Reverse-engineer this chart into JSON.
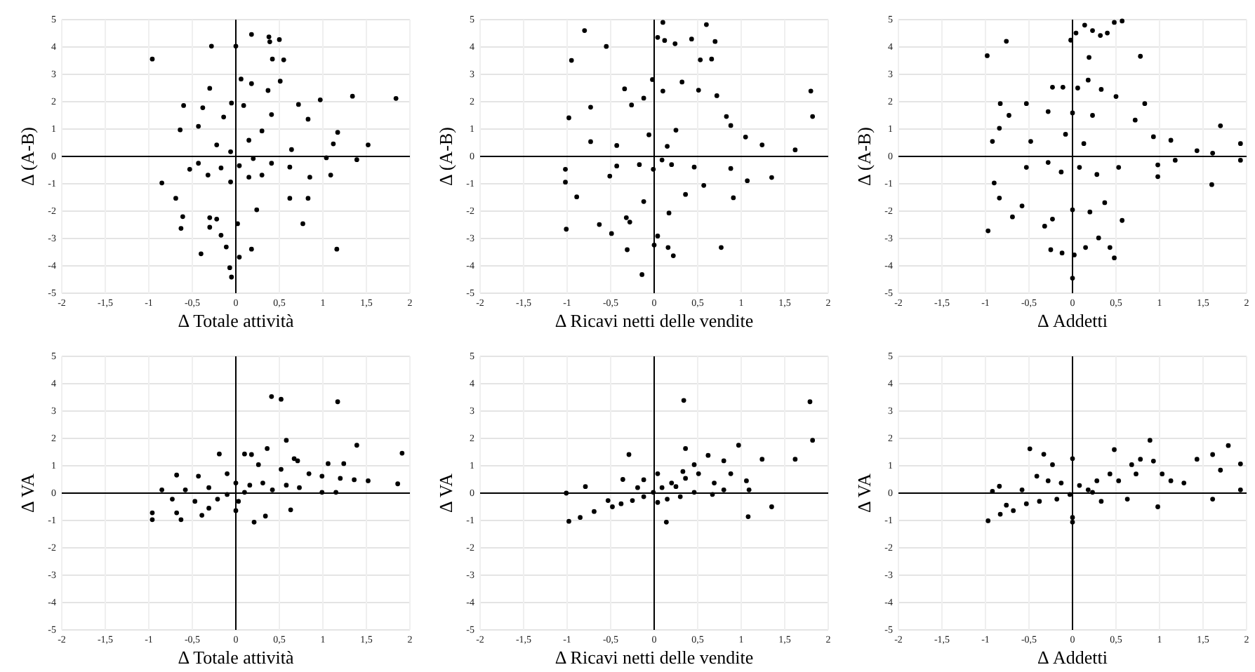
{
  "chart_data": [
    {
      "type": "scatter",
      "xlabel": "Δ Totale attività",
      "ylabel": "Δ (A-B)",
      "color": "#000000",
      "marker": "circle",
      "grid": true,
      "xlim": [
        -2,
        2
      ],
      "ylim": [
        -5,
        5
      ],
      "xticks": [
        -2,
        {
          "value": -1.5,
          "label": "-1,5"
        },
        -1,
        {
          "value": -0.5,
          "label": "-0,5"
        },
        0,
        {
          "value": 0.5,
          "label": "0,5"
        },
        1,
        {
          "value": 1.5,
          "label": "1,5"
        },
        2
      ],
      "yticks": [
        -5,
        -4,
        -3,
        -2,
        -1,
        0,
        1,
        2,
        3,
        4,
        5
      ],
      "x": [
        -0.96,
        -0.28,
        0,
        0.18,
        0.38,
        0.39,
        0.5,
        0.42,
        0.55,
        0.06,
        0.18,
        -0.3,
        0.37,
        0.51,
        -0.05,
        0.97,
        1.34,
        1.84,
        0.72,
        -0.6,
        -0.38,
        0.09,
        0.41,
        -0.14,
        -0.64,
        -0.43,
        0.83,
        1.17,
        1.52,
        1.12,
        1.04,
        1.39,
        0.3,
        0.15,
        -0.22,
        -0.06,
        0.2,
        0.41,
        0.04,
        -0.17,
        -0.43,
        0.62,
        0.15,
        0.3,
        -0.06,
        -0.32,
        -0.85,
        -0.69,
        0.85,
        0.83,
        0.62,
        -0.61,
        -0.63,
        -0.3,
        -0.22,
        -0.3,
        0.24,
        0.02,
        0.77,
        -0.17,
        -0.11,
        -0.4,
        0.18,
        0.04,
        1.16,
        -0.07,
        -0.05,
        1.09,
        0.64,
        -0.53
      ],
      "values": [
        3.56,
        4.03,
        4.03,
        4.46,
        4.37,
        4.19,
        4.27,
        3.56,
        3.53,
        2.83,
        2.66,
        2.49,
        2.41,
        2.75,
        1.95,
        2.07,
        2.2,
        2.12,
        1.9,
        1.86,
        1.78,
        1.86,
        1.53,
        1.44,
        0.97,
        1.1,
        1.36,
        0.88,
        0.42,
        0.46,
        -0.05,
        -0.12,
        0.93,
        0.59,
        0.42,
        0.17,
        -0.08,
        -0.25,
        -0.34,
        -0.42,
        -0.25,
        -0.39,
        -0.76,
        -0.68,
        -0.93,
        -0.68,
        -0.97,
        -1.53,
        -0.76,
        -1.53,
        -1.53,
        -2.2,
        -2.63,
        -2.24,
        -2.29,
        -2.59,
        -1.95,
        -2.46,
        -2.46,
        -2.88,
        -3.31,
        -3.56,
        -3.39,
        -3.68,
        -3.39,
        -4.07,
        -4.41,
        -0.68,
        0.25,
        -0.47
      ]
    },
    {
      "type": "scatter",
      "xlabel": "Δ Ricavi netti delle vendite",
      "ylabel": "Δ (A-B)",
      "color": "#000000",
      "marker": "circle",
      "grid": true,
      "xlim": [
        -2,
        2
      ],
      "ylim": [
        -5,
        5
      ],
      "xticks": [
        -2,
        {
          "value": -1.5,
          "label": "-1,5"
        },
        -1,
        {
          "value": -0.5,
          "label": "-0,5"
        },
        0,
        {
          "value": 0.5,
          "label": "0,5"
        },
        1,
        {
          "value": 1.5,
          "label": "1,5"
        },
        2
      ],
      "yticks": [
        -5,
        -4,
        -3,
        -2,
        -1,
        0,
        1,
        2,
        3,
        4,
        5
      ],
      "x": [
        -0.8,
        0.1,
        0.6,
        0.04,
        0.12,
        0.24,
        0.43,
        0.7,
        -0.55,
        -0.95,
        0.53,
        0.66,
        -0.02,
        0.32,
        -0.34,
        0.1,
        0.51,
        0.72,
        1.8,
        -0.73,
        -0.26,
        -0.12,
        -0.98,
        1.82,
        0.83,
        0.88,
        1.05,
        1.24,
        1.62,
        -0.73,
        -0.43,
        0.25,
        -0.06,
        0.15,
        0.09,
        0.2,
        -0.01,
        -0.17,
        -0.43,
        0.46,
        0.88,
        1.07,
        1.35,
        0.91,
        -1.02,
        -1.02,
        -0.89,
        -0.63,
        -0.49,
        -1.01,
        -0.32,
        -0.28,
        0.17,
        -0.12,
        0.04,
        0,
        0.16,
        0.22,
        -0.31,
        0.77,
        -0.14,
        0.57,
        0.36,
        -0.51
      ],
      "values": [
        4.6,
        4.9,
        4.82,
        4.35,
        4.24,
        4.12,
        4.29,
        4.2,
        4.02,
        3.51,
        3.53,
        3.56,
        2.81,
        2.72,
        2.47,
        2.39,
        2.42,
        2.22,
        2.39,
        1.8,
        1.88,
        2.13,
        1.41,
        1.46,
        1.46,
        1.13,
        0.71,
        0.42,
        0.24,
        0.54,
        0.4,
        0.96,
        0.79,
        0.37,
        -0.13,
        -0.3,
        -0.47,
        -0.3,
        -0.35,
        -0.39,
        -0.44,
        -0.89,
        -0.77,
        -1.51,
        -0.47,
        -0.94,
        -1.48,
        -2.49,
        -2.82,
        -2.66,
        -2.24,
        -2.4,
        -2.07,
        -1.65,
        -2.91,
        -3.24,
        -3.33,
        -3.63,
        -3.41,
        -3.33,
        -4.32,
        -1.06,
        -1.39,
        -0.72
      ]
    },
    {
      "type": "scatter",
      "xlabel": "Δ Addetti",
      "ylabel": "Δ (A-B)",
      "color": "#000000",
      "marker": "circle",
      "grid": true,
      "xlim": [
        -2,
        2
      ],
      "ylim": [
        -5,
        5
      ],
      "xticks": [
        -2,
        {
          "value": -1.5,
          "label": "-1,5"
        },
        -1,
        {
          "value": -0.5,
          "label": "-0,5"
        },
        0,
        {
          "value": 0.5,
          "label": "0,5"
        },
        1,
        {
          "value": 1.5,
          "label": "1,5"
        },
        2
      ],
      "yticks": [
        -5,
        -4,
        -3,
        -2,
        -1,
        0,
        1,
        2,
        3,
        4,
        5
      ],
      "x": [
        -0.98,
        -0.76,
        -0.02,
        0.04,
        0.14,
        0.23,
        0.32,
        0.4,
        0.48,
        0.57,
        0.19,
        0.78,
        -0.23,
        -0.11,
        0.06,
        0.18,
        0.33,
        0.5,
        -0.83,
        -0.53,
        -0.28,
        0,
        0.23,
        0.83,
        0.72,
        1.7,
        -0.73,
        -0.84,
        -0.92,
        -0.48,
        -0.08,
        0.13,
        0.93,
        1.13,
        1.43,
        1.61,
        1.93,
        1.93,
        1.18,
        0.98,
        0.98,
        1.6,
        -0.28,
        -0.13,
        0.08,
        0.28,
        0.53,
        -0.53,
        -0.9,
        -0.84,
        -0.69,
        -0.97,
        -0.58,
        -0.23,
        -0.32,
        0,
        0.2,
        0.3,
        0.15,
        0.43,
        0.48,
        -0.25,
        -0.12,
        0.02,
        0,
        0.57,
        0.37
      ],
      "values": [
        3.68,
        4.21,
        4.25,
        4.51,
        4.8,
        4.6,
        4.42,
        4.51,
        4.9,
        4.95,
        3.62,
        3.66,
        2.53,
        2.53,
        2.5,
        2.79,
        2.45,
        2.19,
        1.93,
        1.93,
        1.64,
        1.59,
        1.5,
        1.93,
        1.33,
        1.12,
        1.5,
        1.03,
        0.55,
        0.55,
        0.81,
        0.47,
        0.72,
        0.59,
        0.21,
        0.12,
        0.47,
        -0.14,
        -0.14,
        -0.31,
        -0.74,
        -1.03,
        -0.22,
        -0.57,
        -0.4,
        -0.66,
        -0.4,
        -0.4,
        -0.97,
        -1.52,
        -2.21,
        -2.72,
        -1.81,
        -2.29,
        -2.55,
        -1.95,
        -2.03,
        -2.98,
        -3.33,
        -3.33,
        -3.71,
        -3.41,
        -3.53,
        -3.6,
        -4.45,
        -2.34,
        -1.69
      ]
    },
    {
      "type": "scatter",
      "xlabel": "Δ Totale attività",
      "ylabel": "Δ VA",
      "color": "#000000",
      "marker": "circle",
      "grid": true,
      "xlim": [
        -2,
        2
      ],
      "ylim": [
        -5,
        5
      ],
      "xticks": [
        -2,
        {
          "value": -1.5,
          "label": "-1,5"
        },
        -1,
        {
          "value": -0.5,
          "label": "-0,5"
        },
        0,
        {
          "value": 0.5,
          "label": "0,5"
        },
        1,
        {
          "value": 1.5,
          "label": "1,5"
        },
        2
      ],
      "yticks": [
        -5,
        -4,
        -3,
        -2,
        -1,
        0,
        1,
        2,
        3,
        4,
        5
      ],
      "x": [
        0.41,
        0.52,
        1.17,
        0.58,
        0.36,
        1.39,
        1.91,
        -0.19,
        0.1,
        0.18,
        0.67,
        0.71,
        1.06,
        1.24,
        -0.68,
        -0.43,
        -0.1,
        0.26,
        0.52,
        0.84,
        0.99,
        1.36,
        1.52,
        1.86,
        1.2,
        -0.85,
        -0.58,
        -0.31,
        0,
        0.16,
        0.31,
        0.58,
        -0.1,
        0.1,
        0.42,
        0.73,
        0.99,
        1.15,
        -0.73,
        -0.47,
        -0.21,
        0.03,
        -0.31,
        -0.68,
        -0.63,
        -0.96,
        -0.96,
        -0.39,
        0.21,
        0.34,
        0.63,
        0
      ],
      "values": [
        3.53,
        3.43,
        3.34,
        1.93,
        1.63,
        1.75,
        1.46,
        1.43,
        1.43,
        1.41,
        1.26,
        1.18,
        1.08,
        1.08,
        0.66,
        0.62,
        0.71,
        1.04,
        0.87,
        0.71,
        0.62,
        0.49,
        0.45,
        0.34,
        0.54,
        0.12,
        0.12,
        0.2,
        0.37,
        0.29,
        0.37,
        0.29,
        -0.05,
        0.03,
        0.12,
        0.2,
        0.03,
        0.03,
        -0.22,
        -0.3,
        -0.22,
        -0.3,
        -0.55,
        -0.72,
        -0.97,
        -0.72,
        -0.97,
        -0.81,
        -1.06,
        -0.84,
        -0.61,
        -0.64
      ]
    },
    {
      "type": "scatter",
      "xlabel": "Δ Ricavi netti delle vendite",
      "ylabel": "Δ VA",
      "color": "#000000",
      "marker": "circle",
      "grid": true,
      "xlim": [
        -2,
        2
      ],
      "ylim": [
        -5,
        5
      ],
      "xticks": [
        -2,
        {
          "value": -1.5,
          "label": "-1,5"
        },
        -1,
        {
          "value": -0.5,
          "label": "-0,5"
        },
        0,
        {
          "value": 0.5,
          "label": "0,5"
        },
        1,
        {
          "value": 1.5,
          "label": "1,5"
        },
        2
      ],
      "yticks": [
        -5,
        -4,
        -3,
        -2,
        -1,
        0,
        1,
        2,
        3,
        4,
        5
      ],
      "x": [
        0.34,
        1.79,
        1.82,
        0.36,
        0.97,
        -0.29,
        1.24,
        1.62,
        0.62,
        0.8,
        0.88,
        1.06,
        1.09,
        0.8,
        0.69,
        0.51,
        0.36,
        0.2,
        0.09,
        -0.01,
        -0.12,
        -0.25,
        -0.38,
        -0.48,
        -0.69,
        -0.85,
        -0.98,
        -1.01,
        -0.79,
        -0.36,
        -0.12,
        0.25,
        0.46,
        0.67,
        0.15,
        0.3,
        0.04,
        0.14,
        1.08,
        1.35,
        -0.19,
        0.04,
        0.46,
        0.33,
        -0.53
      ],
      "values": [
        3.39,
        3.34,
        1.93,
        1.63,
        1.75,
        1.41,
        1.24,
        1.24,
        1.38,
        1.18,
        0.71,
        0.45,
        0.12,
        0.12,
        0.37,
        0.71,
        0.54,
        0.37,
        0.2,
        0.03,
        -0.13,
        -0.27,
        -0.39,
        -0.5,
        -0.67,
        -0.89,
        -1.03,
        0,
        0.24,
        0.5,
        0.49,
        0.24,
        0.03,
        -0.05,
        -0.22,
        -0.13,
        -0.34,
        -1.06,
        -0.86,
        -0.5,
        0.2,
        0.71,
        1.04,
        0.79,
        -0.27
      ]
    },
    {
      "type": "scatter",
      "xlabel": "Δ Addetti",
      "ylabel": "Δ VA",
      "color": "#000000",
      "marker": "circle",
      "grid": true,
      "xlim": [
        -2,
        2
      ],
      "ylim": [
        -5,
        5
      ],
      "xticks": [
        -2,
        {
          "value": -1.5,
          "label": "-1,5"
        },
        -1,
        {
          "value": -0.5,
          "label": "-0,5"
        },
        0,
        {
          "value": 0.5,
          "label": "0,5"
        },
        1,
        {
          "value": 1.5,
          "label": "1,5"
        },
        2
      ],
      "yticks": [
        -5,
        -4,
        -3,
        -2,
        -1,
        0,
        1,
        2,
        3,
        4,
        5
      ],
      "x": [
        0.89,
        -0.49,
        -0.33,
        0.48,
        0,
        1.79,
        1.61,
        1.43,
        1.93,
        1.7,
        0.78,
        0.68,
        0.93,
        0.73,
        1.03,
        1.28,
        1.13,
        -0.23,
        -0.41,
        -0.84,
        -0.92,
        -0.58,
        -0.28,
        -0.13,
        0.08,
        0.28,
        0.43,
        0.53,
        0.23,
        -0.03,
        -0.18,
        -0.38,
        -0.53,
        -0.68,
        -0.83,
        -0.97,
        -0.76,
        0,
        0,
        0.33,
        0.63,
        0.98,
        1.61,
        1.93,
        0.18
      ],
      "values": [
        1.93,
        1.62,
        1.42,
        1.59,
        1.26,
        1.74,
        1.41,
        1.24,
        1.07,
        0.84,
        1.24,
        1.04,
        1.17,
        0.7,
        0.7,
        0.37,
        0.45,
        1.04,
        0.62,
        0.25,
        0.07,
        0.12,
        0.45,
        0.37,
        0.28,
        0.45,
        0.7,
        0.45,
        0.03,
        -0.05,
        -0.22,
        -0.3,
        -0.39,
        -0.64,
        -0.77,
        -1.01,
        -0.44,
        -0.89,
        -1.06,
        -0.3,
        -0.22,
        -0.5,
        -0.22,
        0.12,
        0.12
      ]
    }
  ]
}
